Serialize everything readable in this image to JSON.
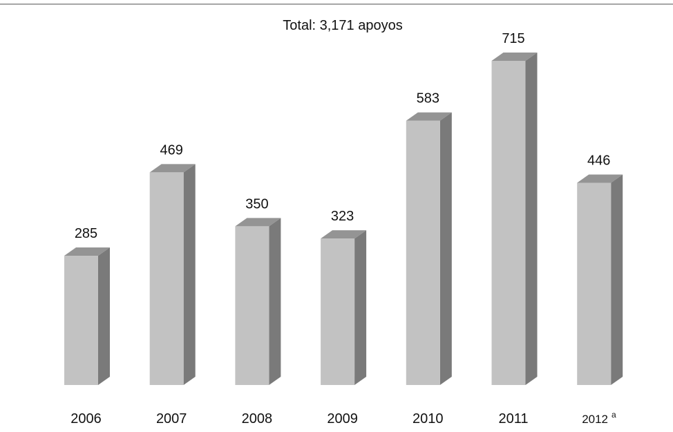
{
  "chart_data": {
    "type": "bar",
    "subtitle": "Total:  3,171 apoyos",
    "categories": [
      "2006",
      "2007",
      "2008",
      "2009",
      "2010",
      "2011",
      "2012"
    ],
    "category_footnotes": [
      "",
      "",
      "",
      "",
      "",
      "",
      "a"
    ],
    "values": [
      285,
      469,
      350,
      323,
      583,
      715,
      446
    ],
    "data_labels": [
      "285",
      "469",
      "350",
      "323",
      "583",
      "715",
      "446"
    ],
    "legend": "none",
    "grid": false,
    "style": "3d-column",
    "colors": {
      "front": "#c2c2c2",
      "side": "#7a7a7a",
      "top": "#949494",
      "rule": "#a6a6a6"
    }
  }
}
